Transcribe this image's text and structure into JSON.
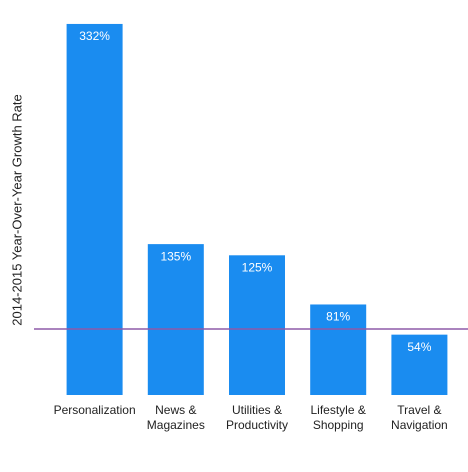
{
  "chart_data": {
    "type": "bar",
    "y_label": "2014-2015 Year-Over-Year Growth Rate",
    "categories": [
      "Personalization",
      "News &\nMagazines",
      "Utilities &\nProductivity",
      "Lifestyle &\nShopping",
      "Travel &\nNavigation"
    ],
    "values": [
      332,
      135,
      125,
      81,
      54
    ],
    "value_labels": [
      "332%",
      "135%",
      "125%",
      "81%",
      "54%"
    ],
    "color": "#1a8cf0",
    "reference_value": 59,
    "reference_color": "#8e5aa8",
    "ylim": [
      0,
      340
    ]
  }
}
